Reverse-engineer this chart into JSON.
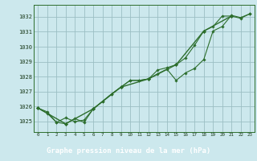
{
  "title": "Graphe pression niveau de la mer (hPa)",
  "bg_color": "#cce8ed",
  "grid_color": "#9bbfc4",
  "line_color": "#2d6e2d",
  "marker_color": "#2d6e2d",
  "label_bg_color": "#336633",
  "label_text_color": "#ffffff",
  "xlim": [
    -0.5,
    23.5
  ],
  "ylim": [
    1024.3,
    1032.8
  ],
  "yticks": [
    1025,
    1026,
    1027,
    1028,
    1029,
    1030,
    1031,
    1032
  ],
  "xticks": [
    0,
    1,
    2,
    3,
    4,
    5,
    6,
    7,
    8,
    9,
    10,
    11,
    12,
    13,
    14,
    15,
    16,
    17,
    18,
    19,
    20,
    21,
    22,
    23
  ],
  "series1": {
    "x": [
      0,
      1,
      2,
      3,
      4,
      5,
      6,
      7,
      8,
      9,
      10,
      11,
      12,
      13,
      14,
      15,
      16,
      17,
      18,
      19,
      20,
      21,
      22,
      23
    ],
    "y": [
      1025.9,
      1025.65,
      1024.95,
      1024.85,
      1025.2,
      1024.95,
      1025.85,
      1026.35,
      1026.85,
      1027.3,
      1027.75,
      1027.75,
      1027.85,
      1028.2,
      1028.5,
      1027.75,
      1028.25,
      1028.55,
      1029.15,
      1031.05,
      1031.35,
      1032.1,
      1031.95,
      1032.2
    ]
  },
  "series2": {
    "x": [
      0,
      1,
      2,
      3,
      4,
      5,
      6,
      7,
      8,
      9,
      10,
      11,
      12,
      13,
      14,
      15,
      16,
      17,
      18,
      19,
      20,
      21,
      22,
      23
    ],
    "y": [
      1025.9,
      1025.55,
      1024.95,
      1025.25,
      1025.0,
      1025.1,
      1025.85,
      1026.35,
      1026.85,
      1027.3,
      1027.75,
      1027.75,
      1027.85,
      1028.45,
      1028.6,
      1028.8,
      1029.25,
      1030.1,
      1031.05,
      1031.35,
      1032.05,
      1032.05,
      1031.9,
      1032.2
    ]
  },
  "series3": {
    "x": [
      0,
      3,
      6,
      9,
      12,
      15,
      18,
      21
    ],
    "y": [
      1025.9,
      1024.85,
      1025.85,
      1027.3,
      1027.85,
      1028.8,
      1031.05,
      1032.05
    ]
  }
}
